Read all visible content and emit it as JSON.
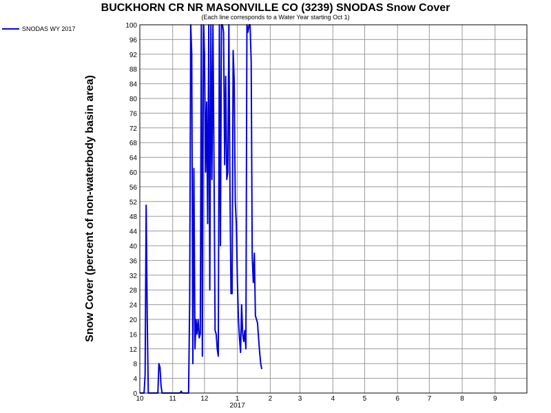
{
  "chart_data": {
    "type": "line",
    "title": "BUCKHORN CR NR MASONVILLE CO (3239) SNODAS Snow Cover",
    "subtitle": "(Each line corresponds to a Water Year starting Oct 1)",
    "ylabel": "Snow Cover (percent of non-waterbody basin area)",
    "xlabel": "",
    "ylim": [
      0,
      100
    ],
    "y_ticks": [
      0,
      4,
      8,
      12,
      16,
      20,
      24,
      28,
      32,
      36,
      40,
      44,
      48,
      52,
      56,
      60,
      64,
      68,
      72,
      76,
      80,
      84,
      88,
      92,
      96,
      100
    ],
    "xlim": [
      0,
      365
    ],
    "x_ticks": [
      {
        "label": "10",
        "day": 0
      },
      {
        "label": "11",
        "day": 31
      },
      {
        "label": "12",
        "day": 61
      },
      {
        "label": "1",
        "day": 92
      },
      {
        "label": "2",
        "day": 123
      },
      {
        "label": "3",
        "day": 151
      },
      {
        "label": "4",
        "day": 182
      },
      {
        "label": "5",
        "day": 212
      },
      {
        "label": "6",
        "day": 243
      },
      {
        "label": "7",
        "day": 273
      },
      {
        "label": "8",
        "day": 304
      },
      {
        "label": "9",
        "day": 335
      }
    ],
    "x_year_label": {
      "label": "2017",
      "day": 92
    },
    "grid": true,
    "legend_position": "top-left",
    "series": [
      {
        "name": "SNODAS WY 2017",
        "color": "#0000dd",
        "points": [
          [
            0,
            0
          ],
          [
            4,
            0
          ],
          [
            5,
            5
          ],
          [
            6,
            51
          ],
          [
            7,
            20
          ],
          [
            8,
            0
          ],
          [
            17,
            0
          ],
          [
            18,
            8
          ],
          [
            19,
            7
          ],
          [
            20,
            2
          ],
          [
            21,
            0
          ],
          [
            38,
            0
          ],
          [
            39,
            0.5
          ],
          [
            40,
            0
          ],
          [
            46,
            0
          ],
          [
            47,
            25
          ],
          [
            48,
            100
          ],
          [
            49,
            92
          ],
          [
            50,
            8
          ],
          [
            51,
            61
          ],
          [
            52,
            12
          ],
          [
            53,
            20
          ],
          [
            54,
            16
          ],
          [
            55,
            20
          ],
          [
            56,
            15
          ],
          [
            57,
            16
          ],
          [
            58,
            100
          ],
          [
            59,
            10
          ],
          [
            60,
            100
          ],
          [
            61,
            92
          ],
          [
            62,
            60
          ],
          [
            63,
            79
          ],
          [
            64,
            46
          ],
          [
            65,
            100
          ],
          [
            66,
            28
          ],
          [
            67,
            100
          ],
          [
            68,
            58
          ],
          [
            69,
            100
          ],
          [
            70,
            60
          ],
          [
            71,
            17
          ],
          [
            72,
            16
          ],
          [
            73,
            12
          ],
          [
            74,
            10
          ],
          [
            75,
            100
          ],
          [
            76,
            40
          ],
          [
            77,
            100
          ],
          [
            78,
            100
          ],
          [
            79,
            98
          ],
          [
            80,
            62
          ],
          [
            81,
            86
          ],
          [
            82,
            58
          ],
          [
            83,
            60
          ],
          [
            84,
            100
          ],
          [
            85,
            55
          ],
          [
            86,
            27
          ],
          [
            87,
            27
          ],
          [
            88,
            93
          ],
          [
            89,
            85
          ],
          [
            90,
            52
          ],
          [
            91,
            46
          ],
          [
            92,
            30
          ],
          [
            93,
            20
          ],
          [
            94,
            15
          ],
          [
            95,
            11
          ],
          [
            96,
            24
          ],
          [
            97,
            16
          ],
          [
            98,
            14
          ],
          [
            99,
            17
          ],
          [
            100,
            12
          ],
          [
            101,
            100
          ],
          [
            102,
            98
          ],
          [
            103,
            100
          ],
          [
            104,
            100
          ],
          [
            105,
            90
          ],
          [
            106,
            37
          ],
          [
            107,
            30
          ],
          [
            108,
            38
          ],
          [
            109,
            21
          ],
          [
            110,
            20
          ],
          [
            111,
            19
          ],
          [
            112,
            15
          ],
          [
            113,
            11
          ],
          [
            114,
            8
          ],
          [
            115,
            6.5
          ]
        ]
      }
    ]
  }
}
